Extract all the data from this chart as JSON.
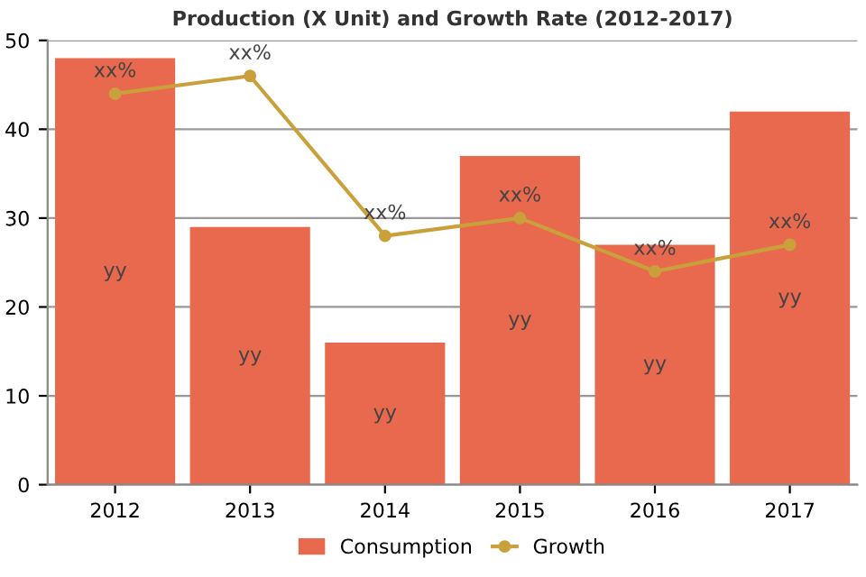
{
  "chart_data": {
    "type": "bar",
    "title": "Production (X Unit) and Growth Rate (2012-2017)",
    "categories": [
      "2012",
      "2013",
      "2014",
      "2015",
      "2016",
      "2017"
    ],
    "series": [
      {
        "name": "Consumption",
        "color": "#e8694d",
        "values": [
          48,
          29,
          16,
          37,
          27,
          42
        ],
        "value_labels": [
          "yy",
          "yy",
          "yy",
          "yy",
          "yy",
          "yy"
        ]
      },
      {
        "name": "Growth",
        "type": "line",
        "color": "#c9a03a",
        "values": [
          44,
          46,
          28,
          30,
          24,
          27
        ],
        "value_labels": [
          "xx%",
          "xx%",
          "xx%",
          "xx%",
          "xx%",
          "xx%"
        ],
        "marker": "circle"
      }
    ],
    "ylim": [
      0,
      50
    ],
    "yticks": [
      0,
      10,
      20,
      30,
      40,
      50
    ],
    "grid": "y",
    "legend": "bottom"
  }
}
